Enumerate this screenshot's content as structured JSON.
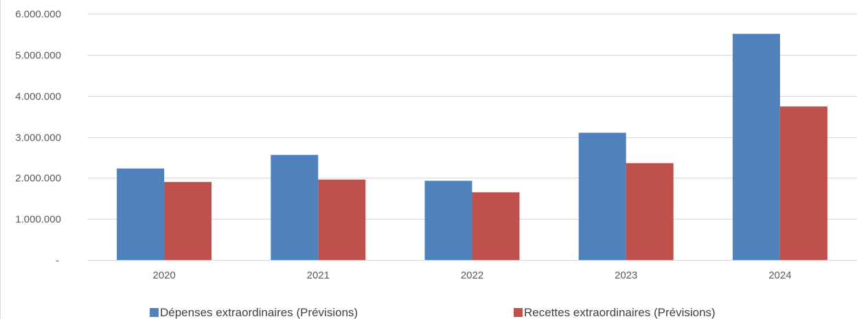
{
  "chart_data": {
    "type": "bar",
    "title": "",
    "xlabel": "",
    "ylabel": "",
    "categories": [
      "2020",
      "2021",
      "2022",
      "2023",
      "2024"
    ],
    "series": [
      {
        "name": "Dépenses extraordinaires (Prévisions)",
        "color": "#4F81BD",
        "values": [
          2230000,
          2560000,
          1930000,
          3100000,
          5510000
        ]
      },
      {
        "name": "Recettes extraordinaires (Prévisions)",
        "color": "#C0504D",
        "values": [
          1900000,
          1960000,
          1650000,
          2360000,
          3740000
        ]
      }
    ],
    "ylim": [
      0,
      6000000
    ],
    "yticks": [
      0,
      1000000,
      2000000,
      3000000,
      4000000,
      5000000,
      6000000
    ],
    "ytick_labels": [
      "-",
      "1.000.000",
      "2.000.000",
      "3.000.000",
      "4.000.000",
      "5.000.000",
      "6.000.000"
    ],
    "grid": true,
    "legend_position": "bottom"
  }
}
